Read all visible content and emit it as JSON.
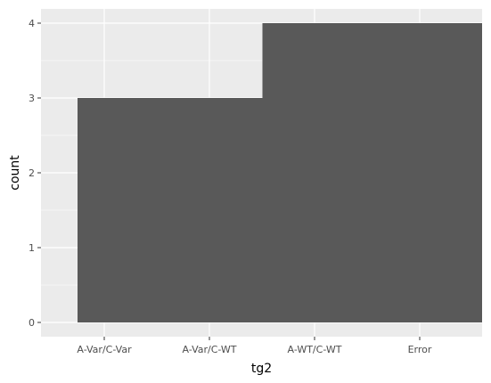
{
  "chart_data": {
    "type": "bar",
    "title": "",
    "xlabel": "tg2",
    "ylabel": "count",
    "categories": [
      "A-Var/C-Var",
      "A-Var/C-WT",
      "A-WT/C-WT",
      "Error"
    ],
    "values": [
      3,
      3,
      4,
      4
    ],
    "ylim": [
      0,
      4
    ],
    "yticks": [
      0,
      1,
      2,
      3,
      4
    ],
    "grid": true,
    "legend": "none",
    "colors": {
      "panel_background": "#ebebeb",
      "grid_line": "#ffffff",
      "bar_fill": "#595959",
      "tick_text": "#4d4d4d",
      "axis_title": "#000000"
    }
  }
}
